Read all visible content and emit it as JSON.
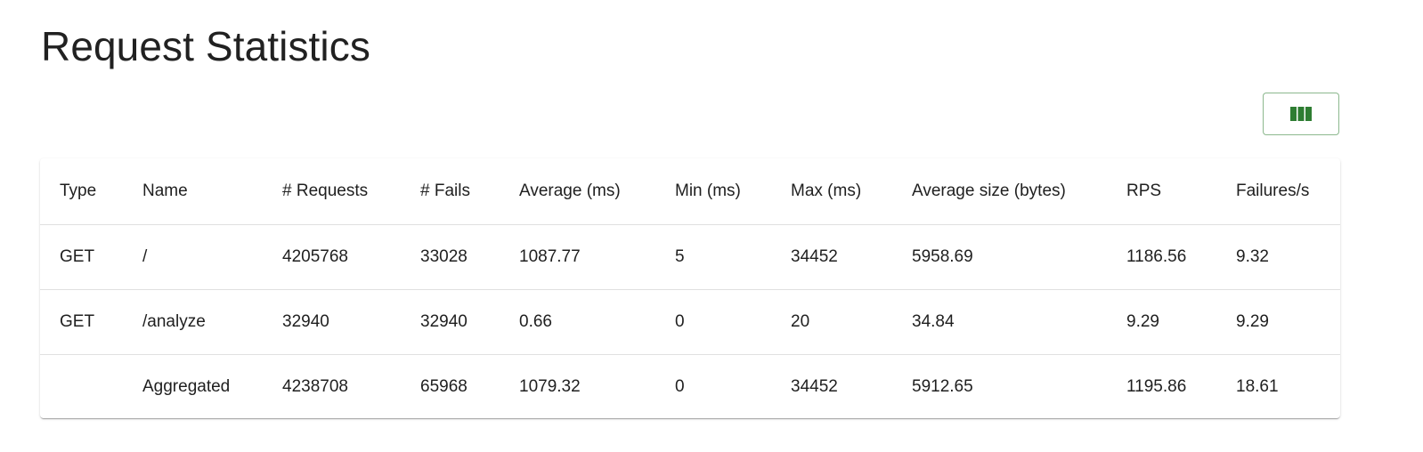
{
  "page": {
    "title": "Request Statistics"
  },
  "toolbar": {
    "columns_icon": "view-column-icon",
    "accent_color": "#2e7d32"
  },
  "table": {
    "headers": {
      "type": "Type",
      "name": "Name",
      "requests": "# Requests",
      "fails": "# Fails",
      "average": "Average (ms)",
      "min": "Min (ms)",
      "max": "Max (ms)",
      "avg_size": "Average size (bytes)",
      "rps": "RPS",
      "failures_per_s": "Failures/s"
    },
    "rows": [
      {
        "type": "GET",
        "name": "/",
        "requests": "4205768",
        "fails": "33028",
        "average": "1087.77",
        "min": "5",
        "max": "34452",
        "avg_size": "5958.69",
        "rps": "1186.56",
        "failures_per_s": "9.32"
      },
      {
        "type": "GET",
        "name": "/analyze",
        "requests": "32940",
        "fails": "32940",
        "average": "0.66",
        "min": "0",
        "max": "20",
        "avg_size": "34.84",
        "rps": "9.29",
        "failures_per_s": "9.29"
      },
      {
        "type": "",
        "name": "Aggregated",
        "requests": "4238708",
        "fails": "65968",
        "average": "1079.32",
        "min": "0",
        "max": "34452",
        "avg_size": "5912.65",
        "rps": "1195.86",
        "failures_per_s": "18.61"
      }
    ]
  }
}
